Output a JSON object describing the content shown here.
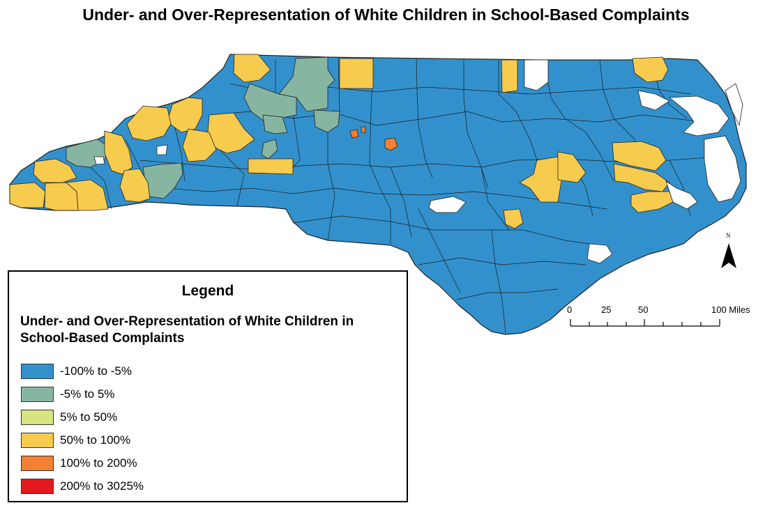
{
  "title": "Under- and Over-Representation of White Children in School-Based Complaints",
  "legend": {
    "heading": "Legend",
    "subtitle": "Under- and Over-Representation of White Children in School-Based Complaints",
    "items": [
      {
        "label": "-100% to -5%",
        "color": "#3291cd"
      },
      {
        "label": "-5% to 5%",
        "color": "#86b6a2"
      },
      {
        "label": "5% to 50%",
        "color": "#d7e47f"
      },
      {
        "label": "50% to 100%",
        "color": "#f7cb4e"
      },
      {
        "label": "100% to 200%",
        "color": "#f47f33"
      },
      {
        "label": "200% to 3025%",
        "color": "#e31a1c"
      }
    ]
  },
  "scale": {
    "labels": [
      "0",
      "25",
      "50",
      "100 Miles"
    ]
  },
  "north_arrow": {
    "label": "N"
  },
  "no_data_color": "#ffffff"
}
